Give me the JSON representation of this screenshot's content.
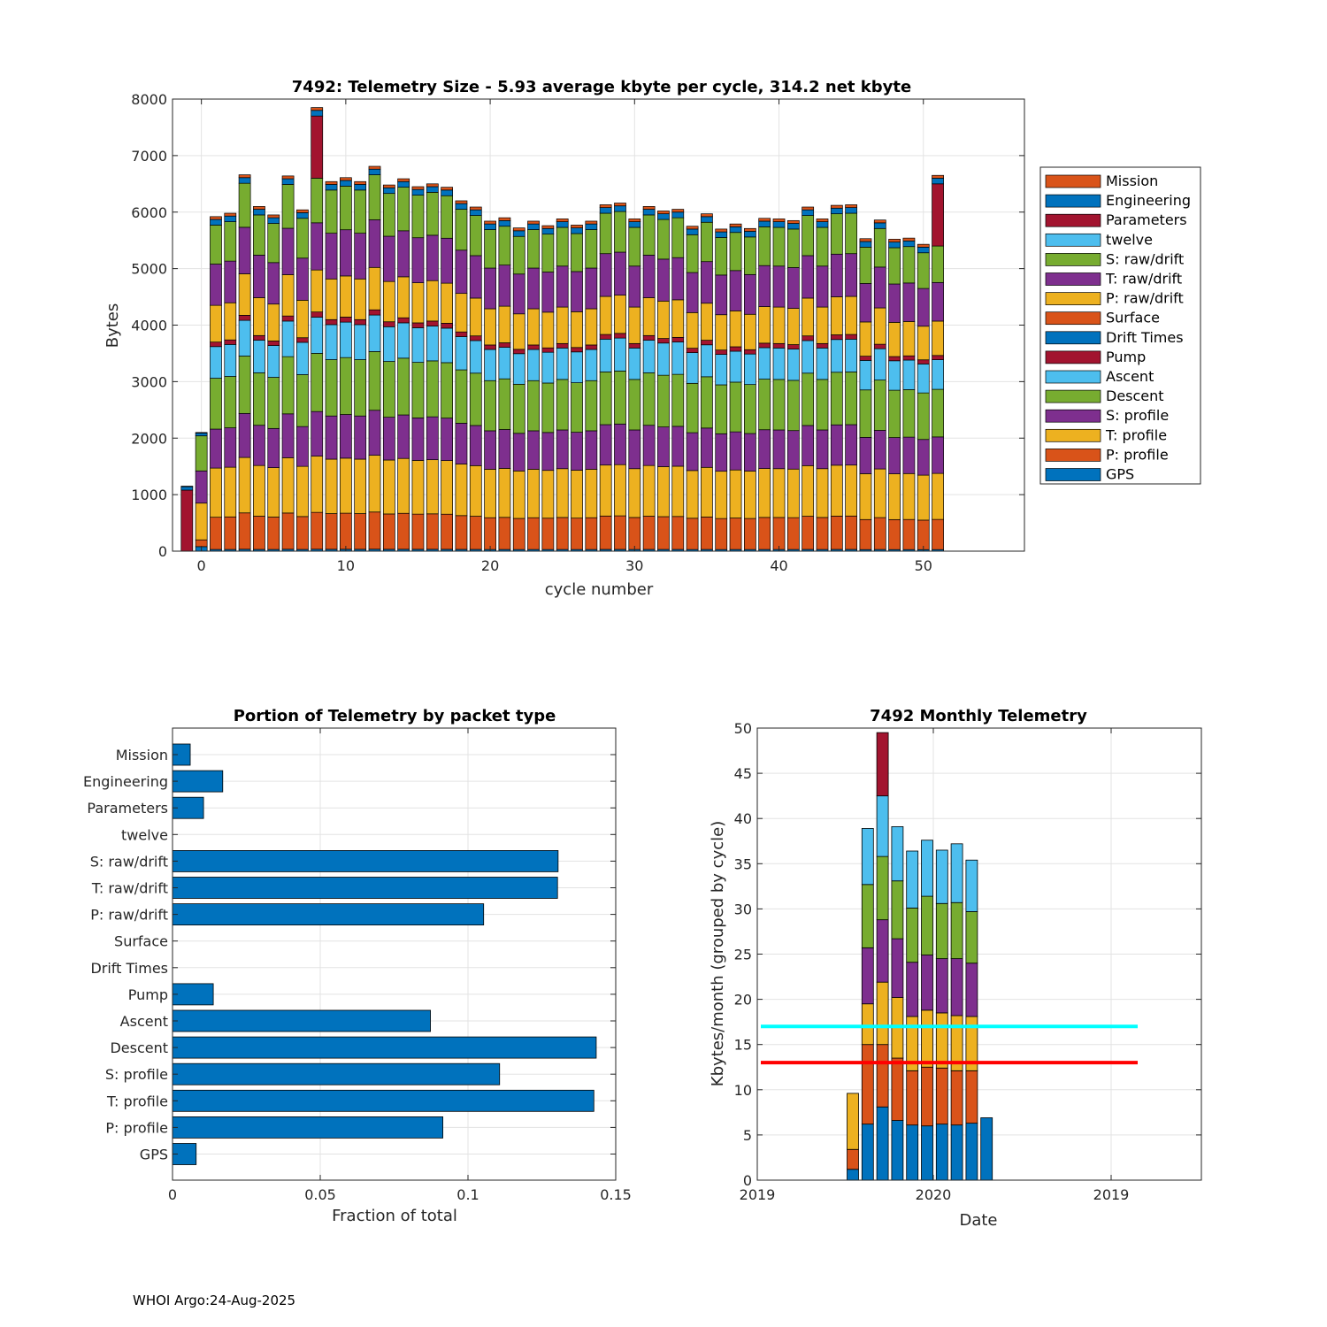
{
  "footer": "WHOI Argo:24-Aug-2025",
  "chart_data": [
    {
      "type": "bar",
      "stacked": true,
      "title": "7492: Telemetry Size - 5.93 average kbyte per cycle,  314.2 net kbyte",
      "xlabel": "cycle number",
      "ylabel": "Bytes",
      "xlim": [
        -2,
        57
      ],
      "ylim": [
        0,
        8000
      ],
      "xticks": [
        0,
        10,
        20,
        30,
        40,
        50
      ],
      "yticks": [
        0,
        1000,
        2000,
        3000,
        4000,
        5000,
        6000,
        7000,
        8000
      ],
      "grid": true,
      "legend": "outside-right",
      "series_names": [
        "GPS",
        "P: profile",
        "T: profile",
        "S: profile",
        "Descent",
        "Ascent",
        "Pump",
        "Drift Times",
        "Surface",
        "P: raw/drift",
        "T: raw/drift",
        "S: raw/drift",
        "twelve",
        "Parameters",
        "Engineering",
        "Mission"
      ],
      "legend_order": [
        "Mission",
        "Engineering",
        "Parameters",
        "twelve",
        "S: raw/drift",
        "T: raw/drift",
        "P: raw/drift",
        "Surface",
        "Drift Times",
        "Pump",
        "Ascent",
        "Descent",
        "S: profile",
        "T: profile",
        "P: profile",
        "GPS"
      ],
      "colors": {
        "GPS": "#0072BD",
        "P: profile": "#D95319",
        "T: profile": "#EDB120",
        "S: profile": "#7E2F8E",
        "Descent": "#77AC30",
        "Ascent": "#4DBEEE",
        "Pump": "#A2142F",
        "Drift Times": "#0072BD",
        "Surface": "#D95319",
        "P: raw/drift": "#EDB120",
        "T: raw/drift": "#7E2F8E",
        "S: raw/drift": "#77AC30",
        "twelve": "#4DBEEE",
        "Parameters": "#A2142F",
        "Engineering": "#0072BD",
        "Mission": "#D95319"
      },
      "cycles": [
        -1,
        0,
        1,
        2,
        3,
        4,
        5,
        6,
        7,
        8,
        9,
        10,
        11,
        12,
        13,
        14,
        15,
        16,
        17,
        18,
        19,
        20,
        21,
        22,
        23,
        24,
        25,
        26,
        27,
        28,
        29,
        30,
        31,
        32,
        33,
        34,
        35,
        36,
        37,
        38,
        39,
        40,
        41,
        42,
        43,
        44,
        45,
        46,
        47,
        48,
        49,
        50,
        51
      ],
      "totals": [
        1150,
        2100,
        5920,
        5980,
        6660,
        6100,
        5950,
        6640,
        6040,
        7850,
        6540,
        6610,
        6540,
        6810,
        6480,
        6590,
        6450,
        6500,
        6440,
        6200,
        6090,
        5840,
        5900,
        5720,
        5840,
        5760,
        5880,
        5770,
        5840,
        6130,
        6160,
        5880,
        6100,
        6020,
        6050,
        5750,
        5970,
        5700,
        5790,
        5710,
        5890,
        5880,
        5850,
        6090,
        5880,
        6120,
        6130,
        5530,
        5860,
        5520,
        5540,
        5430,
        6650
      ],
      "nominal_segments": {
        "GPS": 30,
        "P: profile": 570,
        "T: profile": 870,
        "S: profile": 690,
        "Descent": 900,
        "Ascent": 560,
        "Pump": 80,
        "Drift Times": 0,
        "Surface": 0,
        "P: raw/drift": 650,
        "T: raw/drift": 730,
        "S: raw/drift": 690,
        "twelve": 0,
        "Parameters": 0,
        "Engineering": 100,
        "Mission": 50
      },
      "special_cycles": [
        {
          "cycle": -1,
          "segments": {
            "Pump": 1080,
            "Engineering": 60,
            "Mission": 10
          }
        },
        {
          "cycle": 0,
          "segments": {
            "GPS": 80,
            "P: profile": 120,
            "T: profile": 650,
            "S: profile": 570,
            "Descent": 620,
            "Engineering": 50,
            "Mission": 10
          }
        },
        {
          "cycle": 8,
          "note": "Parameters adds ~1100 bytes"
        },
        {
          "cycle": 51,
          "note": "Parameters adds ~1100 bytes"
        }
      ]
    },
    {
      "type": "bar",
      "orientation": "horizontal",
      "title": "Portion of Telemetry by packet type",
      "xlabel": "Fraction of total",
      "xlim": [
        0,
        0.15
      ],
      "xticks": [
        0,
        0.05,
        0.1,
        0.15
      ],
      "xtick_labels": [
        "0",
        "0.05",
        "0.1",
        "0.15"
      ],
      "grid": true,
      "categories": [
        "Mission",
        "Engineering",
        "Parameters",
        "twelve",
        "S: raw/drift",
        "T: raw/drift",
        "P: raw/drift",
        "Surface",
        "Drift Times",
        "Pump",
        "Ascent",
        "Descent",
        "S: profile",
        "T: profile",
        "P: profile",
        "GPS"
      ],
      "values": [
        0.006,
        0.017,
        0.0105,
        0,
        0.1305,
        0.1303,
        0.1053,
        0,
        0,
        0.0138,
        0.0873,
        0.1434,
        0.1107,
        0.1426,
        0.0915,
        0.008
      ],
      "color": "#0072BD"
    },
    {
      "type": "bar",
      "stacked": true,
      "title": "7492 Monthly Telemetry",
      "xlabel": "Date",
      "ylabel": "Kbytes/month (grouped by cycle)",
      "ylim": [
        0,
        50
      ],
      "yticks": [
        0,
        5,
        10,
        15,
        20,
        25,
        30,
        35,
        40,
        45,
        50
      ],
      "xtick_labels": [
        "2019",
        "2020",
        "2019"
      ],
      "grid": true,
      "layer_colors": [
        "#0072BD",
        "#D95319",
        "#EDB120",
        "#7E2F8E",
        "#77AC30",
        "#4DBEEE",
        "#A2142F"
      ],
      "months": [
        {
          "layers": [
            1.2,
            2.2,
            6.2
          ]
        },
        {
          "layers": [
            6.2,
            8.8,
            4.5,
            6.2,
            7.0,
            6.2
          ]
        },
        {
          "layers": [
            8.1,
            6.9,
            6.9,
            6.9,
            7.0,
            6.7,
            7.0
          ]
        },
        {
          "layers": [
            6.6,
            6.9,
            6.7,
            6.5,
            6.4,
            6.0
          ]
        },
        {
          "layers": [
            6.1,
            6.0,
            6.0,
            6.0,
            6.0,
            6.3
          ]
        },
        {
          "layers": [
            6.0,
            6.5,
            6.3,
            6.1,
            6.5,
            6.2
          ]
        },
        {
          "layers": [
            6.2,
            6.2,
            6.1,
            6.0,
            6.1,
            5.9
          ]
        },
        {
          "layers": [
            6.1,
            6.0,
            6.1,
            6.3,
            6.2,
            6.5
          ]
        },
        {
          "layers": [
            6.3,
            5.8,
            6.0,
            5.9,
            5.7,
            5.7
          ]
        },
        {
          "layers": [
            6.9
          ]
        }
      ],
      "reference_lines": [
        {
          "value": 17,
          "color": "#00FFFF"
        },
        {
          "value": 13,
          "color": "#FF0000"
        }
      ]
    }
  ]
}
